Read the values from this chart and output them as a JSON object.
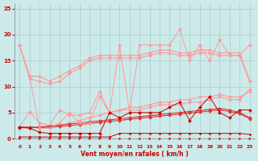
{
  "x": [
    0,
    1,
    2,
    3,
    4,
    5,
    6,
    7,
    8,
    9,
    10,
    11,
    12,
    13,
    14,
    15,
    16,
    17,
    18,
    19,
    20,
    21,
    22,
    23
  ],
  "line_jagged_top": [
    18,
    12,
    2,
    2,
    3,
    5,
    3,
    3,
    8,
    5,
    18,
    5,
    18,
    18,
    18,
    18,
    21,
    15,
    18,
    15,
    19,
    16,
    16,
    18
  ],
  "line_reg_upper1": [
    18,
    12,
    12,
    11,
    12,
    13,
    14,
    15.5,
    16,
    16,
    16,
    16,
    16,
    16.5,
    17,
    17,
    16.5,
    16.5,
    17,
    17,
    16.5,
    16.5,
    16.5,
    11
  ],
  "line_reg_upper2": [
    18,
    11.5,
    11,
    10.5,
    11,
    12.5,
    13.5,
    15,
    15.5,
    15.5,
    15.5,
    15.5,
    15.5,
    16,
    16.5,
    16.5,
    16,
    16,
    16.5,
    16.5,
    16,
    16,
    16,
    11
  ],
  "line_reg_lower1": [
    2.2,
    5.2,
    3.0,
    2.5,
    5.5,
    4.5,
    4.5,
    5.0,
    9.0,
    5.0,
    5.5,
    5.5,
    5.5,
    6.0,
    6.5,
    6.5,
    6.5,
    7.0,
    7.0,
    7.5,
    8.0,
    7.5,
    7.5,
    9.5
  ],
  "line_reg_lower2": [
    2.1,
    2.1,
    2.1,
    2.2,
    2.5,
    3.0,
    3.5,
    4.0,
    4.5,
    5.0,
    5.5,
    6.0,
    6.0,
    6.5,
    7.0,
    7.0,
    7.5,
    7.5,
    8.0,
    8.0,
    8.5,
    8.0,
    8.0,
    9.0
  ],
  "line_jagged_mid": [
    2.2,
    2.0,
    1.2,
    1.0,
    1.0,
    1.0,
    1.0,
    1.0,
    1.0,
    5.0,
    4.0,
    5.0,
    5.0,
    5.0,
    5.0,
    6.0,
    7.0,
    3.5,
    6.0,
    8.0,
    5.0,
    4.0,
    5.5,
    5.5
  ],
  "line_reg_mid1": [
    2.2,
    2.2,
    2.2,
    2.4,
    2.6,
    2.8,
    3.0,
    3.2,
    3.4,
    3.6,
    3.8,
    4.0,
    4.2,
    4.4,
    4.6,
    4.8,
    5.0,
    5.2,
    5.4,
    5.6,
    5.8,
    5.5,
    5.0,
    4.0
  ],
  "line_reg_mid2": [
    2.1,
    2.1,
    2.1,
    2.2,
    2.3,
    2.5,
    2.7,
    2.9,
    3.1,
    3.3,
    3.5,
    3.7,
    3.9,
    4.1,
    4.3,
    4.5,
    4.7,
    4.9,
    5.1,
    5.3,
    5.5,
    5.2,
    4.8,
    3.8
  ],
  "line_bottom": [
    0.3,
    0.3,
    0.3,
    0.3,
    0.3,
    0.3,
    0.3,
    0.3,
    0.3,
    0.3,
    1.0,
    1.0,
    1.0,
    1.0,
    1.0,
    1.0,
    1.0,
    1.0,
    1.0,
    1.0,
    1.0,
    1.0,
    1.0,
    0.8
  ],
  "bg_color": "#cceaea",
  "grid_color": "#aacccc",
  "line_color_dark": "#cc0000",
  "line_color_mid": "#dd3333",
  "line_color_light": "#ff9999",
  "xlabel": "Vent moyen/en rafales ( km/h )",
  "ylim": [
    0,
    26
  ],
  "xlim": [
    -0.5,
    23.5
  ],
  "yticks": [
    0,
    5,
    10,
    15,
    20,
    25
  ],
  "xticks": [
    0,
    1,
    2,
    3,
    4,
    5,
    6,
    7,
    8,
    9,
    10,
    11,
    12,
    13,
    14,
    15,
    16,
    17,
    18,
    19,
    20,
    21,
    22,
    23
  ]
}
